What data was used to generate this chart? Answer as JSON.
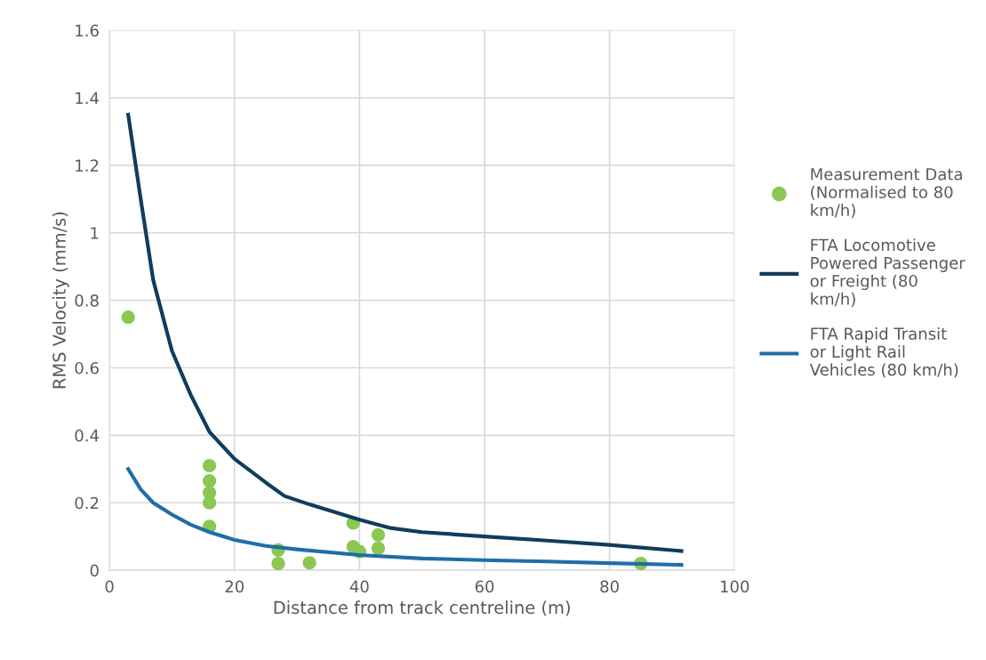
{
  "chart_data": {
    "type": "scatter",
    "xlabel": "Distance from track centreline (m)",
    "ylabel": "RMS Velocity (mm/s)",
    "xlim": [
      0,
      100
    ],
    "xticks": [
      0,
      20,
      40,
      60,
      80,
      100
    ],
    "ylim": [
      0,
      1.6
    ],
    "yticks": [
      0,
      0.2,
      0.4,
      0.6,
      0.8,
      1,
      1.2,
      1.4,
      1.6
    ],
    "grid": true,
    "legend": "right",
    "series": [
      {
        "name": "Measurement Data (Normalised to 80 km/h)",
        "marker": "circle",
        "color": "#8cc753",
        "x": [
          3,
          16,
          16,
          16,
          16,
          16,
          27,
          27,
          32,
          39,
          39,
          40,
          43,
          43,
          85
        ],
        "values": [
          0.75,
          0.31,
          0.265,
          0.23,
          0.2,
          0.13,
          0.06,
          0.02,
          0.022,
          0.14,
          0.07,
          0.055,
          0.105,
          0.065,
          0.02
        ]
      },
      {
        "name": "FTA Locomotive Powered Passenger or Freight (80 km/h)",
        "type": "line",
        "color": "#0e3d5f",
        "x": [
          3,
          5,
          7,
          10,
          13,
          16,
          20,
          25,
          28,
          32,
          40,
          45,
          50,
          60,
          70,
          80,
          91.5
        ],
        "values": [
          1.35,
          1.1,
          0.86,
          0.65,
          0.52,
          0.41,
          0.33,
          0.26,
          0.22,
          0.195,
          0.15,
          0.125,
          0.113,
          0.1,
          0.088,
          0.075,
          0.057
        ]
      },
      {
        "name": "FTA Rapid Transit or Light Rail Vehicles (80 km/h)",
        "type": "line",
        "color": "#1f6ea8",
        "x": [
          3,
          5,
          7,
          10,
          13,
          16,
          20,
          25,
          30,
          40,
          50,
          60,
          70,
          80,
          91.5
        ],
        "values": [
          0.3,
          0.24,
          0.2,
          0.165,
          0.135,
          0.113,
          0.09,
          0.072,
          0.062,
          0.045,
          0.035,
          0.03,
          0.026,
          0.021,
          0.016
        ]
      }
    ]
  }
}
